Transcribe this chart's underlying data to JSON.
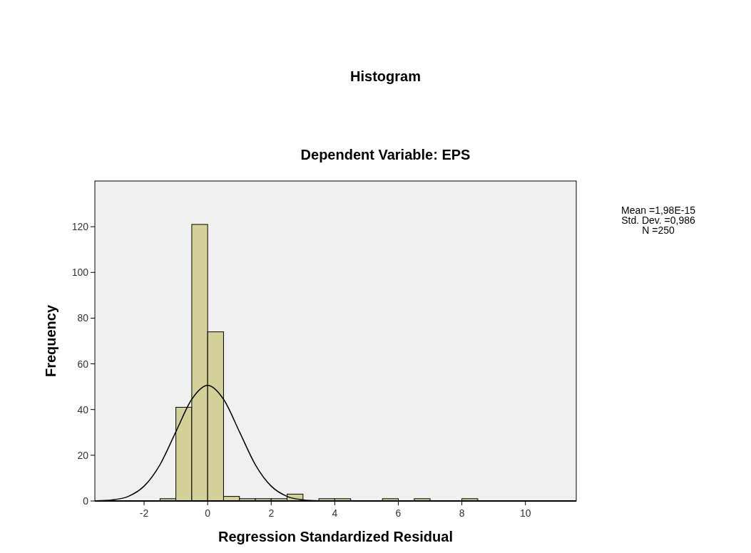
{
  "chart_data": {
    "type": "histogram",
    "title": "Histogram",
    "subtitle": "Dependent Variable: EPS",
    "xlabel": "Regression Standardized Residual",
    "ylabel": "Frequency",
    "bins": [
      -1.5,
      -1,
      -0.5,
      0,
      0.5,
      1,
      1.5,
      2,
      2.5,
      3,
      3.5,
      4,
      4.5,
      5,
      5.5,
      6,
      6.5,
      7,
      7.5,
      8,
      8.5
    ],
    "values": [
      1,
      41,
      121,
      74,
      2,
      1,
      1,
      1,
      3,
      0,
      1,
      1,
      0,
      0,
      1,
      0,
      1,
      0,
      0,
      1
    ],
    "color": "#d4d09a",
    "series": [
      {
        "type": "line",
        "color": "#000000",
        "x": [
          -3.5,
          -3,
          -2.5,
          -2,
          -1.5,
          -1,
          -0.5,
          0,
          0.5,
          1,
          1.5,
          2,
          2.5,
          3,
          3.5
        ],
        "values": [
          0.1,
          0.5,
          2,
          6.5,
          15.9,
          30.3,
          44.5,
          50.6,
          44.5,
          30.3,
          15.9,
          6.5,
          2,
          0.5,
          0.1
        ]
      }
    ],
    "xlim": [
      -3.55,
      11.6
    ],
    "ylim": [
      0,
      140
    ],
    "xticks": [
      -2,
      0,
      2,
      4,
      6,
      8,
      10
    ],
    "yticks": [
      0,
      20,
      40,
      60,
      80,
      100,
      120
    ],
    "annotations": [
      "Mean =1,98E-15",
      "Std. Dev. =0,986",
      "N =250"
    ],
    "grid": false
  }
}
